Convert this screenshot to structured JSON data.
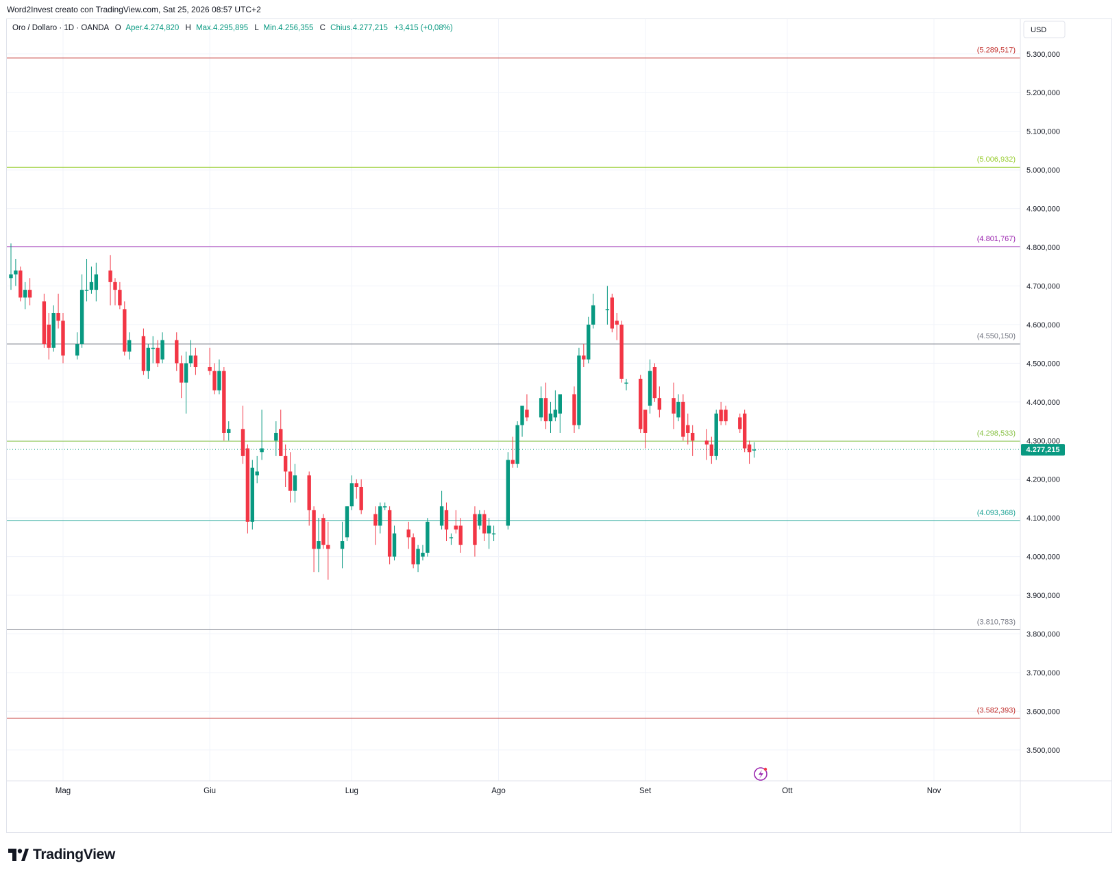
{
  "attribution": "Word2Invest creato con TradingView.com, Sat 25, 2026 08:57 UTC+2",
  "legend": {
    "title": "Oro / Dollaro · 1D · OANDA",
    "open_label": "O",
    "open": "Aper.4.274,820",
    "high_label": "H",
    "high": "Max.4.295,895",
    "low_label": "L",
    "low": "Min.4.256,355",
    "close_label": "C",
    "close": "Chius.4.277,215",
    "change": "+3,415 (+0,08%)"
  },
  "currency": "USD",
  "brand": "TradingView",
  "colors": {
    "up": "#089981",
    "down": "#f23645",
    "last_price_bg": "#089981",
    "grid": "#f0f3fa",
    "axis_text": "#131722"
  },
  "chart_data": {
    "type": "candlestick",
    "y_range": [
      3420000,
      5390000
    ],
    "y_ticks": [
      {
        "value": 5300000,
        "label": "5.300,000"
      },
      {
        "value": 5200000,
        "label": "5.200,000"
      },
      {
        "value": 5100000,
        "label": "5.100,000"
      },
      {
        "value": 5000000,
        "label": "5.000,000"
      },
      {
        "value": 4900000,
        "label": "4.900,000"
      },
      {
        "value": 4800000,
        "label": "4.800,000"
      },
      {
        "value": 4700000,
        "label": "4.700,000"
      },
      {
        "value": 4600000,
        "label": "4.600,000"
      },
      {
        "value": 4500000,
        "label": "4.500,000"
      },
      {
        "value": 4400000,
        "label": "4.400,000"
      },
      {
        "value": 4300000,
        "label": "4.300,000"
      },
      {
        "value": 4200000,
        "label": "4.200,000"
      },
      {
        "value": 4100000,
        "label": "4.100,000"
      },
      {
        "value": 4000000,
        "label": "4.000,000"
      },
      {
        "value": 3900000,
        "label": "3.900,000"
      },
      {
        "value": 3800000,
        "label": "3.800,000"
      },
      {
        "value": 3700000,
        "label": "3.700,000"
      },
      {
        "value": 3600000,
        "label": "3.600,000"
      },
      {
        "value": 3500000,
        "label": "3.500,000"
      }
    ],
    "x_ticks": [
      {
        "date": "2026-05-01",
        "label": "Mag"
      },
      {
        "date": "2026-06-01",
        "label": "Giu"
      },
      {
        "date": "2026-07-01",
        "label": "Lug"
      },
      {
        "date": "2026-08-01",
        "label": "Ago"
      },
      {
        "date": "2026-09-01",
        "label": "Set"
      },
      {
        "date": "2026-10-01",
        "label": "Ott"
      },
      {
        "date": "2026-11-01",
        "label": "Nov"
      }
    ],
    "levels": [
      {
        "value": 5289517,
        "label": "(5.289,517)",
        "color": "#c2312e"
      },
      {
        "value": 5006932,
        "label": "(5.006,932)",
        "color": "#9acd32"
      },
      {
        "value": 4801767,
        "label": "(4.801,767)",
        "color": "#9c27b0"
      },
      {
        "value": 4550150,
        "label": "(4.550,150)",
        "color": "#787b86"
      },
      {
        "value": 4298533,
        "label": "(4.298,533)",
        "color": "#8bc34a"
      },
      {
        "value": 4093368,
        "label": "(4.093,368)",
        "color": "#26a69a"
      },
      {
        "value": 3810783,
        "label": "(3.810,783)",
        "color": "#787b86"
      },
      {
        "value": 3582393,
        "label": "(3.582,393)",
        "color": "#c2312e"
      }
    ],
    "last_price": {
      "value": 4277215,
      "label": "4.277,215"
    },
    "candles": [
      {
        "date": "2026-04-20",
        "o": 4720,
        "h": 4810,
        "l": 4690,
        "c": 4730
      },
      {
        "date": "2026-04-21",
        "o": 4730,
        "h": 4770,
        "l": 4700,
        "c": 4740
      },
      {
        "date": "2026-04-22",
        "o": 4740,
        "h": 4750,
        "l": 4660,
        "c": 4670
      },
      {
        "date": "2026-04-23",
        "o": 4670,
        "h": 4710,
        "l": 4640,
        "c": 4690
      },
      {
        "date": "2026-04-24",
        "o": 4690,
        "h": 4720,
        "l": 4650,
        "c": 4670
      },
      {
        "date": "2026-04-27",
        "o": 4660,
        "h": 4680,
        "l": 4540,
        "c": 4550
      },
      {
        "date": "2026-04-28",
        "o": 4600,
        "h": 4630,
        "l": 4510,
        "c": 4540
      },
      {
        "date": "2026-04-29",
        "o": 4540,
        "h": 4650,
        "l": 4530,
        "c": 4630
      },
      {
        "date": "2026-04-30",
        "o": 4630,
        "h": 4680,
        "l": 4590,
        "c": 4610
      },
      {
        "date": "2026-05-01",
        "o": 4610,
        "h": 4630,
        "l": 4500,
        "c": 4520
      },
      {
        "date": "2026-05-04",
        "o": 4520,
        "h": 4580,
        "l": 4510,
        "c": 4550
      },
      {
        "date": "2026-05-05",
        "o": 4550,
        "h": 4730,
        "l": 4540,
        "c": 4690
      },
      {
        "date": "2026-05-06",
        "o": 4690,
        "h": 4770,
        "l": 4660,
        "c": 4690
      },
      {
        "date": "2026-05-07",
        "o": 4690,
        "h": 4750,
        "l": 4680,
        "c": 4710
      },
      {
        "date": "2026-05-08",
        "o": 4690,
        "h": 4760,
        "l": 4660,
        "c": 4730
      },
      {
        "date": "2026-05-11",
        "o": 4740,
        "h": 4780,
        "l": 4650,
        "c": 4710
      },
      {
        "date": "2026-05-12",
        "o": 4710,
        "h": 4720,
        "l": 4650,
        "c": 4690
      },
      {
        "date": "2026-05-13",
        "o": 4690,
        "h": 4710,
        "l": 4640,
        "c": 4650
      },
      {
        "date": "2026-05-14",
        "o": 4640,
        "h": 4660,
        "l": 4520,
        "c": 4530
      },
      {
        "date": "2026-05-15",
        "o": 4530,
        "h": 4580,
        "l": 4510,
        "c": 4560
      },
      {
        "date": "2026-05-18",
        "o": 4570,
        "h": 4590,
        "l": 4470,
        "c": 4480
      },
      {
        "date": "2026-05-19",
        "o": 4480,
        "h": 4550,
        "l": 4460,
        "c": 4540
      },
      {
        "date": "2026-05-20",
        "o": 4540,
        "h": 4570,
        "l": 4500,
        "c": 4540
      },
      {
        "date": "2026-05-21",
        "o": 4540,
        "h": 4560,
        "l": 4490,
        "c": 4500
      },
      {
        "date": "2026-05-22",
        "o": 4510,
        "h": 4580,
        "l": 4500,
        "c": 4560
      },
      {
        "date": "2026-05-25",
        "o": 4560,
        "h": 4580,
        "l": 4480,
        "c": 4500
      },
      {
        "date": "2026-05-26",
        "o": 4500,
        "h": 4520,
        "l": 4410,
        "c": 4450
      },
      {
        "date": "2026-05-27",
        "o": 4450,
        "h": 4530,
        "l": 4370,
        "c": 4500
      },
      {
        "date": "2026-05-28",
        "o": 4500,
        "h": 4560,
        "l": 4490,
        "c": 4520
      },
      {
        "date": "2026-05-29",
        "o": 4520,
        "h": 4540,
        "l": 4470,
        "c": 4490
      },
      {
        "date": "2026-06-01",
        "o": 4490,
        "h": 4540,
        "l": 4470,
        "c": 4480
      },
      {
        "date": "2026-06-02",
        "o": 4480,
        "h": 4500,
        "l": 4420,
        "c": 4430
      },
      {
        "date": "2026-06-03",
        "o": 4430,
        "h": 4510,
        "l": 4420,
        "c": 4480
      },
      {
        "date": "2026-06-04",
        "o": 4480,
        "h": 4490,
        "l": 4300,
        "c": 4320
      },
      {
        "date": "2026-06-05",
        "o": 4320,
        "h": 4350,
        "l": 4300,
        "c": 4330
      },
      {
        "date": "2026-06-08",
        "o": 4330,
        "h": 4390,
        "l": 4240,
        "c": 4260
      },
      {
        "date": "2026-06-09",
        "o": 4280,
        "h": 4290,
        "l": 4060,
        "c": 4090
      },
      {
        "date": "2026-06-10",
        "o": 4090,
        "h": 4250,
        "l": 4070,
        "c": 4230
      },
      {
        "date": "2026-06-11",
        "o": 4210,
        "h": 4260,
        "l": 4190,
        "c": 4220
      },
      {
        "date": "2026-06-12",
        "o": 4270,
        "h": 4380,
        "l": 4250,
        "c": 4280
      },
      {
        "date": "2026-06-15",
        "o": 4300,
        "h": 4350,
        "l": 4260,
        "c": 4320
      },
      {
        "date": "2026-06-16",
        "o": 4330,
        "h": 4380,
        "l": 4260,
        "c": 4260
      },
      {
        "date": "2026-06-17",
        "o": 4260,
        "h": 4290,
        "l": 4180,
        "c": 4220
      },
      {
        "date": "2026-06-18",
        "o": 4220,
        "h": 4270,
        "l": 4140,
        "c": 4170
      },
      {
        "date": "2026-06-19",
        "o": 4170,
        "h": 4240,
        "l": 4140,
        "c": 4210
      },
      {
        "date": "2026-06-22",
        "o": 4210,
        "h": 4220,
        "l": 4080,
        "c": 4120
      },
      {
        "date": "2026-06-23",
        "o": 4120,
        "h": 4130,
        "l": 3960,
        "c": 4020
      },
      {
        "date": "2026-06-24",
        "o": 4020,
        "h": 4100,
        "l": 3960,
        "c": 4040
      },
      {
        "date": "2026-06-25",
        "o": 4100,
        "h": 4110,
        "l": 4020,
        "c": 4030
      },
      {
        "date": "2026-06-26",
        "o": 4030,
        "h": 4090,
        "l": 3940,
        "c": 4020
      },
      {
        "date": "2026-06-29",
        "o": 4020,
        "h": 4090,
        "l": 3970,
        "c": 4040
      },
      {
        "date": "2026-06-30",
        "o": 4050,
        "h": 4130,
        "l": 4040,
        "c": 4130
      },
      {
        "date": "2026-07-01",
        "o": 4130,
        "h": 4210,
        "l": 4120,
        "c": 4190
      },
      {
        "date": "2026-07-02",
        "o": 4190,
        "h": 4200,
        "l": 4150,
        "c": 4180
      },
      {
        "date": "2026-07-03",
        "o": 4180,
        "h": 4200,
        "l": 4110,
        "c": 4120
      },
      {
        "date": "2026-07-06",
        "o": 4110,
        "h": 4130,
        "l": 4030,
        "c": 4080
      },
      {
        "date": "2026-07-07",
        "o": 4080,
        "h": 4140,
        "l": 4060,
        "c": 4130
      },
      {
        "date": "2026-07-08",
        "o": 4130,
        "h": 4140,
        "l": 4120,
        "c": 4130
      },
      {
        "date": "2026-07-09",
        "o": 4120,
        "h": 4130,
        "l": 3980,
        "c": 4000
      },
      {
        "date": "2026-07-10",
        "o": 4000,
        "h": 4080,
        "l": 3990,
        "c": 4060
      },
      {
        "date": "2026-07-13",
        "o": 4070,
        "h": 4090,
        "l": 4020,
        "c": 4050
      },
      {
        "date": "2026-07-14",
        "o": 4050,
        "h": 4060,
        "l": 3970,
        "c": 3980
      },
      {
        "date": "2026-07-15",
        "o": 3980,
        "h": 4030,
        "l": 3960,
        "c": 4020
      },
      {
        "date": "2026-07-16",
        "o": 4000,
        "h": 4030,
        "l": 3990,
        "c": 4010
      },
      {
        "date": "2026-07-17",
        "o": 4010,
        "h": 4100,
        "l": 4000,
        "c": 4090
      },
      {
        "date": "2026-07-20",
        "o": 4080,
        "h": 4170,
        "l": 4070,
        "c": 4130
      },
      {
        "date": "2026-07-21",
        "o": 4120,
        "h": 4140,
        "l": 4040,
        "c": 4070
      },
      {
        "date": "2026-07-22",
        "o": 4050,
        "h": 4060,
        "l": 4030,
        "c": 4050
      },
      {
        "date": "2026-07-23",
        "o": 4080,
        "h": 4120,
        "l": 4060,
        "c": 4070
      },
      {
        "date": "2026-07-24",
        "o": 4080,
        "h": 4100,
        "l": 4010,
        "c": 4030
      },
      {
        "date": "2026-07-27",
        "o": 4110,
        "h": 4130,
        "l": 4000,
        "c": 4030
      },
      {
        "date": "2026-07-28",
        "o": 4080,
        "h": 4120,
        "l": 4070,
        "c": 4110
      },
      {
        "date": "2026-07-29",
        "o": 4110,
        "h": 4120,
        "l": 4040,
        "c": 4060
      },
      {
        "date": "2026-07-30",
        "o": 4060,
        "h": 4100,
        "l": 4020,
        "c": 4080
      },
      {
        "date": "2026-07-31",
        "o": 4060,
        "h": 4080,
        "l": 4040,
        "c": 4060
      },
      {
        "date": "2026-08-03",
        "o": 4080,
        "h": 4270,
        "l": 4070,
        "c": 4250
      },
      {
        "date": "2026-08-04",
        "o": 4250,
        "h": 4310,
        "l": 4230,
        "c": 4240
      },
      {
        "date": "2026-08-05",
        "o": 4240,
        "h": 4350,
        "l": 4230,
        "c": 4340
      },
      {
        "date": "2026-08-06",
        "o": 4340,
        "h": 4390,
        "l": 4310,
        "c": 4390
      },
      {
        "date": "2026-08-07",
        "o": 4380,
        "h": 4420,
        "l": 4350,
        "c": 4360
      },
      {
        "date": "2026-08-10",
        "o": 4360,
        "h": 4440,
        "l": 4350,
        "c": 4410
      },
      {
        "date": "2026-08-11",
        "o": 4410,
        "h": 4450,
        "l": 4330,
        "c": 4350
      },
      {
        "date": "2026-08-12",
        "o": 4350,
        "h": 4400,
        "l": 4320,
        "c": 4370
      },
      {
        "date": "2026-08-13",
        "o": 4360,
        "h": 4430,
        "l": 4350,
        "c": 4380
      },
      {
        "date": "2026-08-14",
        "o": 4370,
        "h": 4410,
        "l": 4320,
        "c": 4420
      },
      {
        "date": "2026-08-17",
        "o": 4420,
        "h": 4440,
        "l": 4320,
        "c": 4340
      },
      {
        "date": "2026-08-18",
        "o": 4340,
        "h": 4540,
        "l": 4330,
        "c": 4520
      },
      {
        "date": "2026-08-19",
        "o": 4520,
        "h": 4550,
        "l": 4490,
        "c": 4510
      },
      {
        "date": "2026-08-20",
        "o": 4510,
        "h": 4620,
        "l": 4500,
        "c": 4600
      },
      {
        "date": "2026-08-21",
        "o": 4600,
        "h": 4680,
        "l": 4590,
        "c": 4650
      },
      {
        "date": "2026-08-24",
        "o": 4640,
        "h": 4700,
        "l": 4600,
        "c": 4640
      },
      {
        "date": "2026-08-25",
        "o": 4670,
        "h": 4680,
        "l": 4580,
        "c": 4590
      },
      {
        "date": "2026-08-26",
        "o": 4610,
        "h": 4630,
        "l": 4560,
        "c": 4600
      },
      {
        "date": "2026-08-27",
        "o": 4600,
        "h": 4610,
        "l": 4450,
        "c": 4460
      },
      {
        "date": "2026-08-28",
        "o": 4450,
        "h": 4460,
        "l": 4430,
        "c": 4450
      },
      {
        "date": "2026-08-31",
        "o": 4460,
        "h": 4470,
        "l": 4320,
        "c": 4330
      },
      {
        "date": "2026-09-01",
        "o": 4380,
        "h": 4380,
        "l": 4280,
        "c": 4320
      },
      {
        "date": "2026-09-02",
        "o": 4390,
        "h": 4510,
        "l": 4370,
        "c": 4480
      },
      {
        "date": "2026-09-03",
        "o": 4490,
        "h": 4500,
        "l": 4400,
        "c": 4410
      },
      {
        "date": "2026-09-04",
        "o": 4410,
        "h": 4440,
        "l": 4360,
        "c": 4380
      },
      {
        "date": "2026-09-07",
        "o": 4410,
        "h": 4450,
        "l": 4330,
        "c": 4370
      },
      {
        "date": "2026-09-08",
        "o": 4360,
        "h": 4420,
        "l": 4350,
        "c": 4400
      },
      {
        "date": "2026-09-09",
        "o": 4400,
        "h": 4420,
        "l": 4300,
        "c": 4310
      },
      {
        "date": "2026-09-10",
        "o": 4340,
        "h": 4370,
        "l": 4290,
        "c": 4320
      },
      {
        "date": "2026-09-11",
        "o": 4320,
        "h": 4340,
        "l": 4260,
        "c": 4300
      },
      {
        "date": "2026-09-14",
        "o": 4300,
        "h": 4330,
        "l": 4250,
        "c": 4290
      },
      {
        "date": "2026-09-15",
        "o": 4290,
        "h": 4310,
        "l": 4240,
        "c": 4260
      },
      {
        "date": "2026-09-16",
        "o": 4260,
        "h": 4380,
        "l": 4250,
        "c": 4370
      },
      {
        "date": "2026-09-17",
        "o": 4380,
        "h": 4400,
        "l": 4340,
        "c": 4350
      },
      {
        "date": "2026-09-18",
        "o": 4380,
        "h": 4390,
        "l": 4340,
        "c": 4350
      },
      {
        "date": "2026-09-21",
        "o": 4360,
        "h": 4370,
        "l": 4320,
        "c": 4330
      },
      {
        "date": "2026-09-22",
        "o": 4370,
        "h": 4380,
        "l": 4270,
        "c": 4280
      },
      {
        "date": "2026-09-23",
        "o": 4290,
        "h": 4300,
        "l": 4240,
        "c": 4270
      },
      {
        "date": "2026-09-24",
        "o": 4275,
        "h": 4296,
        "l": 4256,
        "c": 4277
      }
    ]
  }
}
